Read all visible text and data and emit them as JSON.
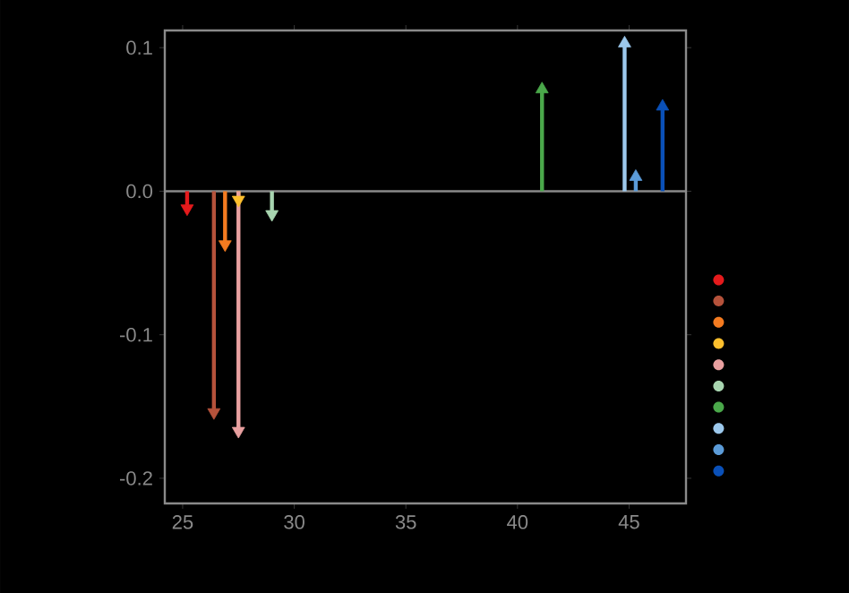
{
  "chart_data": {
    "type": "lollipop",
    "marker": "triangle",
    "series": [
      {
        "color": "#e41a1c",
        "x": [
          25.2
        ],
        "values": [
          -0.012
        ]
      },
      {
        "color": "#b5523b",
        "x": [
          26.4
        ],
        "values": [
          -0.154
        ]
      },
      {
        "color": "#f47b20",
        "x": [
          26.9
        ],
        "values": [
          -0.037
        ]
      },
      {
        "color": "#fdbf2d",
        "x": [
          27.5
        ],
        "values": [
          -0.006
        ]
      },
      {
        "color": "#e8a0a0",
        "x": [
          27.5
        ],
        "values": [
          -0.167
        ]
      },
      {
        "color": "#a8d5b0",
        "x": [
          29.0
        ],
        "values": [
          -0.016
        ]
      },
      {
        "color": "#4aa84a",
        "x": [
          41.1
        ],
        "values": [
          0.071
        ]
      },
      {
        "color": "#9cc8ec",
        "x": [
          44.8
        ],
        "values": [
          0.103
        ]
      },
      {
        "color": "#5b9bd8",
        "x": [
          45.3
        ],
        "values": [
          0.01
        ]
      },
      {
        "color": "#0a50b8",
        "x": [
          46.5
        ],
        "values": [
          0.059
        ]
      }
    ],
    "xlim": [
      24.2,
      47.55
    ],
    "xticks": [
      25,
      30,
      35,
      40,
      45
    ],
    "ylim": [
      -0.2175,
      0.112
    ],
    "yticks": [
      -0.2,
      -0.1,
      {
        "value": 0,
        "label": "0.0"
      },
      0.1
    ],
    "ref_lines": [
      {
        "axis": "y",
        "value": 0,
        "color": "#8a8a8a"
      }
    ],
    "grid": false
  }
}
